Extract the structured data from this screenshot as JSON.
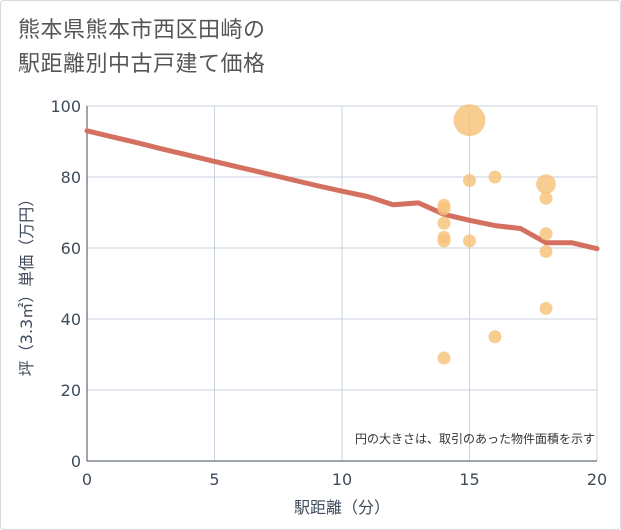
{
  "title_lines": [
    "熊本県熊本市西区田崎の",
    "駅距離別中古戸建て価格"
  ],
  "chart_data": {
    "type": "scatter",
    "title": "熊本県熊本市西区田崎の駅距離別中古戸建て価格",
    "xlabel": "駅距離（分）",
    "ylabel": "坪（3.3㎡）単価（万円）",
    "xlim": [
      0,
      20
    ],
    "ylim": [
      0,
      100
    ],
    "xticks": [
      0,
      5,
      10,
      15,
      20
    ],
    "yticks": [
      0,
      20,
      40,
      60,
      80,
      100
    ],
    "grid": true,
    "note": "円の大きさは、取引のあった物件面積を示す",
    "colors": {
      "scatter": "#f5c27a",
      "trend": "#d4705f",
      "grid": "#c9d3df"
    },
    "scatter": [
      {
        "x": 14,
        "y": 72,
        "size": 1
      },
      {
        "x": 14,
        "y": 71,
        "size": 1
      },
      {
        "x": 14,
        "y": 67,
        "size": 1
      },
      {
        "x": 14,
        "y": 63,
        "size": 1
      },
      {
        "x": 14,
        "y": 62,
        "size": 1
      },
      {
        "x": 14,
        "y": 29,
        "size": 1
      },
      {
        "x": 15,
        "y": 96,
        "size": 6
      },
      {
        "x": 15,
        "y": 79,
        "size": 1
      },
      {
        "x": 15,
        "y": 62,
        "size": 1
      },
      {
        "x": 16,
        "y": 80,
        "size": 1
      },
      {
        "x": 16,
        "y": 35,
        "size": 1
      },
      {
        "x": 18,
        "y": 78,
        "size": 2.3
      },
      {
        "x": 18,
        "y": 74,
        "size": 1
      },
      {
        "x": 18,
        "y": 64,
        "size": 1
      },
      {
        "x": 18,
        "y": 59,
        "size": 1
      },
      {
        "x": 18,
        "y": 43,
        "size": 1
      }
    ],
    "trend": {
      "x": [
        0,
        1,
        2,
        3,
        4,
        5,
        6,
        7,
        8,
        9,
        10,
        11,
        12,
        13,
        14,
        15,
        16,
        17,
        18,
        19,
        20
      ],
      "y": [
        93,
        91.3,
        89.6,
        87.8,
        86.1,
        84.4,
        82.7,
        81,
        79.3,
        77.6,
        76,
        74.5,
        72.2,
        72.7,
        69.5,
        67.8,
        66.3,
        65.5,
        61.5,
        61.5,
        59.8
      ]
    }
  }
}
